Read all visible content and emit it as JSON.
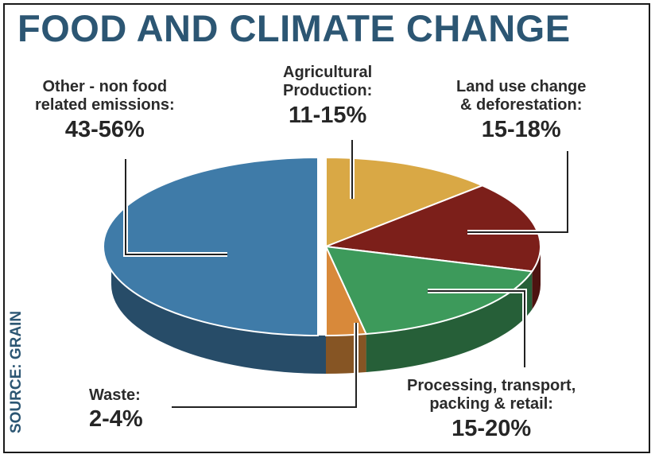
{
  "title": "FOOD AND CLIMATE CHANGE",
  "source": "SOURCE: GRAIN",
  "colors": {
    "title": "#2c5673",
    "other": "#3f7ba8",
    "agri": "#d9a845",
    "land": "#7c1f1a",
    "processing": "#3d9a5b",
    "waste": "#d8893a"
  },
  "chart_data": {
    "type": "pie",
    "title": "FOOD AND CLIMATE CHANGE",
    "slices": [
      {
        "label_lines": [
          "Agricultural",
          "Production:"
        ],
        "range": "11-15%",
        "low": 11,
        "high": 15,
        "value": 13,
        "color": "#d9a845"
      },
      {
        "label_lines": [
          "Land use change",
          "& deforestation:"
        ],
        "range": "15-18%",
        "low": 15,
        "high": 18,
        "value": 16.5,
        "color": "#7c1f1a"
      },
      {
        "label_lines": [
          "Processing, transport,",
          "packing & retail:"
        ],
        "range": "15-20%",
        "low": 15,
        "high": 20,
        "value": 17.5,
        "color": "#3d9a5b"
      },
      {
        "label_lines": [
          "Waste:"
        ],
        "range": "2-4%",
        "low": 2,
        "high": 4,
        "value": 3,
        "color": "#d8893a"
      },
      {
        "label_lines": [
          "Other - non food",
          "related emissions:"
        ],
        "range": "43-56%",
        "low": 43,
        "high": 56,
        "value": 50,
        "color": "#3f7ba8"
      }
    ]
  }
}
